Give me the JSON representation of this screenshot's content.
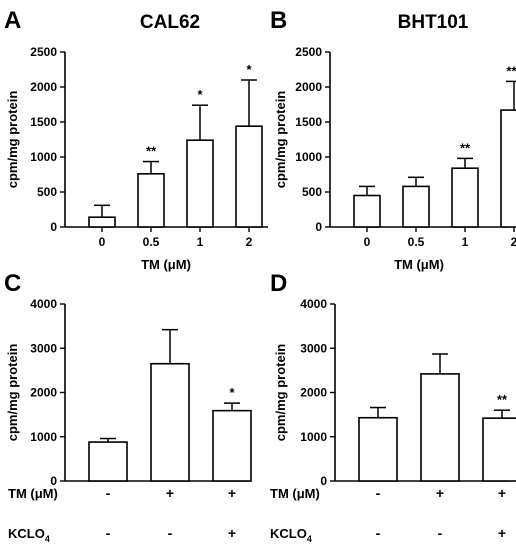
{
  "chart_data": [
    {
      "panel_letter": "A",
      "type": "bar",
      "title": "CAL62",
      "ylabel": "cpm/mg protein",
      "xlabel": "TM (μM)",
      "ylim": [
        0,
        2500
      ],
      "yticks": [
        0,
        500,
        1000,
        1500,
        2000,
        2500
      ],
      "categories": [
        "0",
        "0.5",
        "1",
        "2"
      ],
      "values": [
        140,
        760,
        1240,
        1440
      ],
      "errors": [
        170,
        175,
        500,
        660
      ],
      "significance": [
        "",
        "**",
        "*",
        "*"
      ]
    },
    {
      "panel_letter": "B",
      "type": "bar",
      "title": "BHT101",
      "ylabel": "cpm/mg protein",
      "xlabel": "TM (μM)",
      "ylim": [
        0,
        2500
      ],
      "yticks": [
        0,
        500,
        1000,
        1500,
        2000,
        2500
      ],
      "categories": [
        "0",
        "0.5",
        "1",
        "2"
      ],
      "values": [
        450,
        580,
        840,
        1670
      ],
      "errors": [
        130,
        130,
        140,
        410
      ],
      "significance": [
        "",
        "",
        "**",
        "***"
      ]
    },
    {
      "panel_letter": "C",
      "type": "bar",
      "title": "",
      "ylabel": "cpm/mg protein",
      "ylim": [
        0,
        4000
      ],
      "yticks": [
        0,
        1000,
        2000,
        3000,
        4000
      ],
      "values": [
        880,
        2650,
        1590
      ],
      "errors": [
        80,
        770,
        170
      ],
      "significance": [
        "",
        "",
        "*"
      ],
      "factor_rows": [
        {
          "label": "TM (μM)",
          "marks": [
            "-",
            "+",
            "+"
          ]
        },
        {
          "label": "KCLO",
          "sub": "4",
          "marks": [
            "-",
            "-",
            "+"
          ]
        }
      ]
    },
    {
      "panel_letter": "D",
      "type": "bar",
      "title": "",
      "ylabel": "cpm/mg protein",
      "ylim": [
        0,
        4000
      ],
      "yticks": [
        0,
        1000,
        2000,
        3000,
        4000
      ],
      "values": [
        1430,
        2420,
        1420
      ],
      "errors": [
        230,
        450,
        180
      ],
      "significance": [
        "",
        "",
        "**"
      ],
      "factor_rows": [
        {
          "label": "TM (μM)",
          "marks": [
            "-",
            "+",
            "+"
          ]
        },
        {
          "label": "KCLO",
          "sub": "4",
          "marks": [
            "-",
            "-",
            "+"
          ]
        }
      ]
    }
  ]
}
